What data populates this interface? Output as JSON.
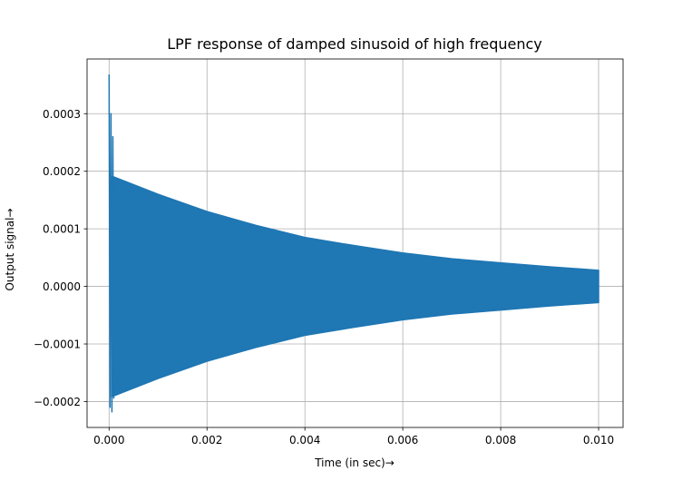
{
  "chart_data": {
    "type": "line",
    "title": "LPF response of damped sinusoid of high frequency",
    "xlabel": "Time (in sec)→",
    "ylabel": "Output signal→",
    "xlim": [
      -0.00045,
      0.0105
    ],
    "ylim": [
      -0.000245,
      0.000395
    ],
    "grid": true,
    "series_color": "#1f77b4",
    "x_ticks": [
      {
        "value": 0.0,
        "label": "0.000"
      },
      {
        "value": 0.002,
        "label": "0.002"
      },
      {
        "value": 0.004,
        "label": "0.004"
      },
      {
        "value": 0.006,
        "label": "0.006"
      },
      {
        "value": 0.008,
        "label": "0.008"
      },
      {
        "value": 0.01,
        "label": "0.010"
      }
    ],
    "y_ticks": [
      {
        "value": -0.0002,
        "label": "−0.0002"
      },
      {
        "value": -0.0001,
        "label": "−0.0001"
      },
      {
        "value": 0.0,
        "label": "0.0000"
      },
      {
        "value": 0.0001,
        "label": "0.0001"
      },
      {
        "value": 0.0002,
        "label": "0.0002"
      },
      {
        "value": 0.0003,
        "label": "0.0003"
      }
    ],
    "series": [
      {
        "upper_envelope": {
          "x": [
            5e-05,
            0.0001,
            0.001,
            0.002,
            0.003,
            0.004,
            0.005,
            0.006,
            0.007,
            0.008,
            0.009,
            0.01
          ],
          "y": [
            0.00019,
            0.00019,
            0.00016,
            0.00013,
            0.000106,
            8.5e-05,
            7.1e-05,
            5.8e-05,
            4.8e-05,
            4.1e-05,
            3.4e-05,
            2.8e-05
          ]
        },
        "lower_envelope": {
          "x": [
            5e-05,
            0.0001,
            0.001,
            0.002,
            0.003,
            0.004,
            0.005,
            0.006,
            0.007,
            0.008,
            0.009,
            0.01
          ],
          "y": [
            -0.000192,
            -0.00019,
            -0.00016,
            -0.00013,
            -0.000106,
            -8.5e-05,
            -7.1e-05,
            -5.8e-05,
            -4.8e-05,
            -4.1e-05,
            -3.4e-05,
            -2.8e-05
          ]
        },
        "initial_transient": {
          "x": [
            0.0,
            1e-05,
            2e-05,
            3e-05,
            4e-05,
            5e-05
          ],
          "y": [
            0.000368,
            -0.00021,
            0.0003,
            -0.000218,
            0.00026,
            -0.000195
          ]
        }
      }
    ]
  }
}
